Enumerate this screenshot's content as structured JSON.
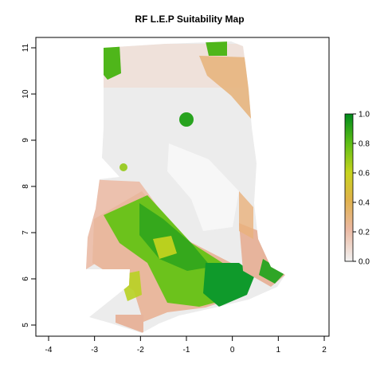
{
  "map": {
    "title": "RF L.E.P Suitability Map",
    "x_ticks": [
      "-4",
      "-3",
      "-2",
      "-1",
      "0",
      "1",
      "2"
    ],
    "y_ticks": [
      "5",
      "6",
      "7",
      "8",
      "9",
      "10",
      "11"
    ],
    "xlim": [
      -4.2,
      2.2
    ],
    "ylim": [
      4.75,
      11.25
    ],
    "grid": false
  },
  "legend": {
    "ticks": [
      "0.0",
      "0.2",
      "0.4",
      "0.6",
      "0.8",
      "1.0"
    ],
    "range": [
      0,
      1
    ],
    "colors": [
      "#f2f2f2",
      "#ebb8a1",
      "#e0b24a",
      "#c8d41e",
      "#5fbf16",
      "#0a9a2a",
      "#008a1c"
    ],
    "placement": "right"
  }
}
